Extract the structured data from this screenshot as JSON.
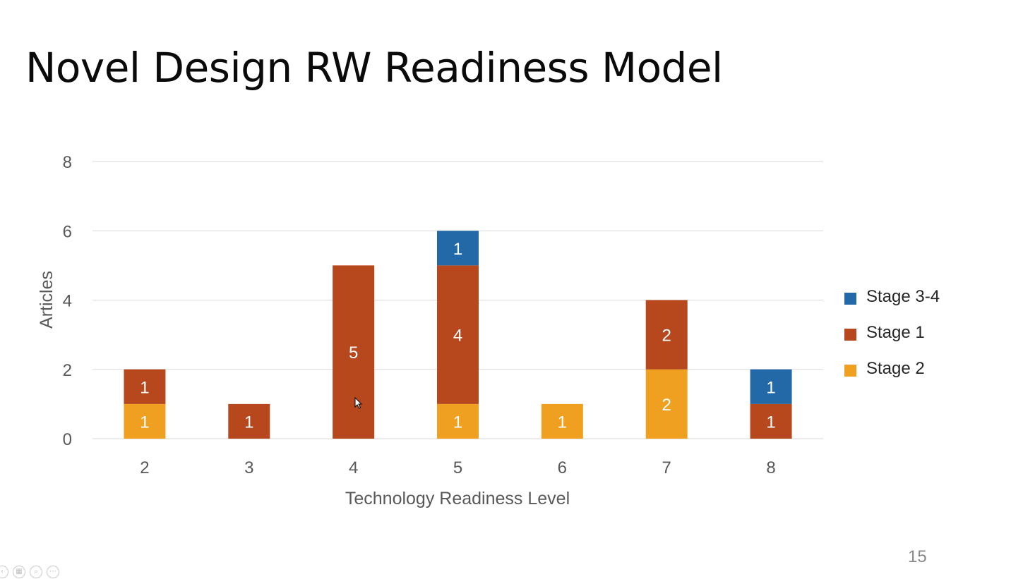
{
  "slide": {
    "title": "Novel Design RW Readiness Model",
    "page_number": "15"
  },
  "colors": {
    "stage_3_4": "#2369a7",
    "stage_1": "#b7471d",
    "stage_2": "#f0a021",
    "gridline": "#d9d9d9",
    "axis_text": "#595959",
    "data_label": "#ffffff"
  },
  "chart_data": {
    "type": "bar",
    "stacked": true,
    "xlabel": "Technology Readiness Level",
    "ylabel": "Articles",
    "categories": [
      "2",
      "3",
      "4",
      "5",
      "6",
      "7",
      "8"
    ],
    "ylim": [
      0,
      8
    ],
    "yticks": [
      0,
      2,
      4,
      6,
      8
    ],
    "grid": true,
    "legend_position": "right",
    "series": [
      {
        "name": "Stage 2",
        "color_key": "stage_2",
        "values": [
          1,
          0,
          0,
          1,
          1,
          2,
          0
        ]
      },
      {
        "name": "Stage 1",
        "color_key": "stage_1",
        "values": [
          1,
          1,
          5,
          4,
          0,
          2,
          1
        ]
      },
      {
        "name": "Stage 3-4",
        "color_key": "stage_3_4",
        "values": [
          0,
          0,
          0,
          1,
          0,
          0,
          1
        ]
      }
    ],
    "legend_order": [
      "Stage 3-4",
      "Stage 1",
      "Stage 2"
    ]
  },
  "controls": {
    "icons": [
      "prev-icon",
      "slides-icon",
      "zoom-icon",
      "more-icon"
    ],
    "glyphs": [
      "‹",
      "▦",
      "⌕",
      "⋯"
    ]
  }
}
